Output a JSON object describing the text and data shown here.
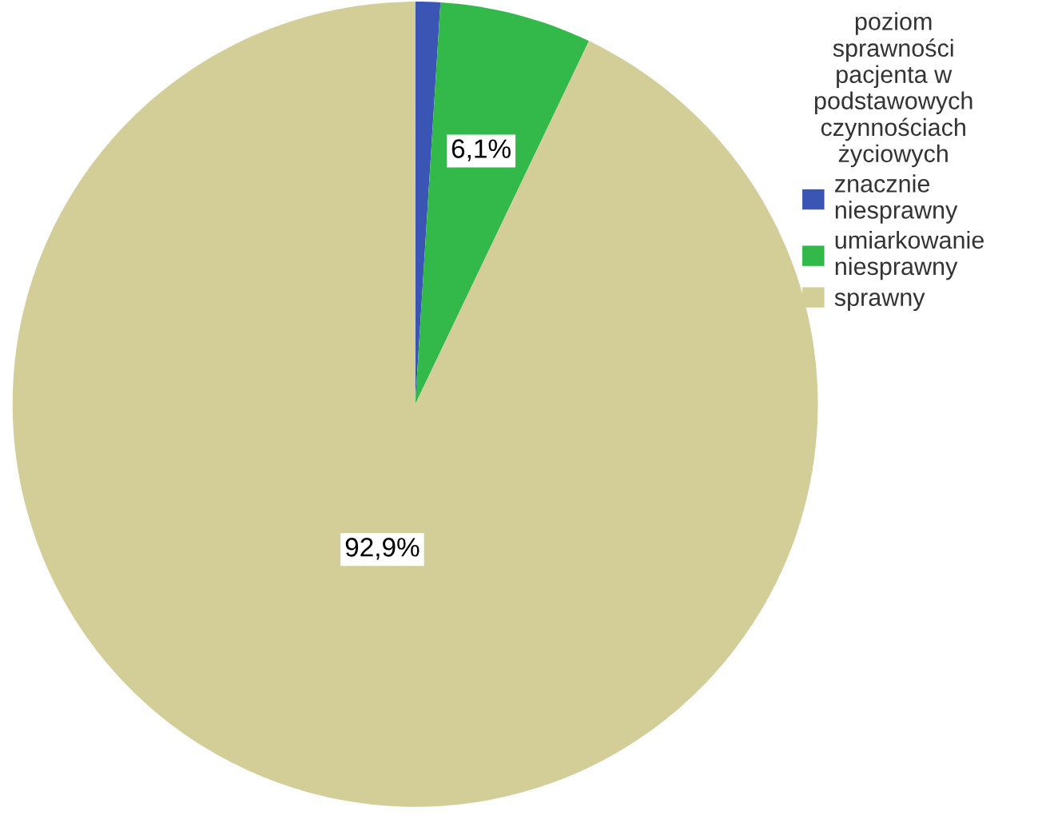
{
  "chart_data": {
    "type": "pie",
    "legend_title": "poziom\nsprawności\npacjenta w\npodstawowych\nczynnościach\nżyciowych",
    "categories": [
      "znacznie\nniesprawny",
      "umiarkowanie\nniesprawny",
      "sprawny"
    ],
    "values": [
      1.0,
      6.1,
      92.9
    ],
    "colors": [
      "#3a55b4",
      "#33b84a",
      "#d3cd97"
    ],
    "value_labels": [
      null,
      "6,1%",
      "92,9%"
    ],
    "legend": "right"
  }
}
